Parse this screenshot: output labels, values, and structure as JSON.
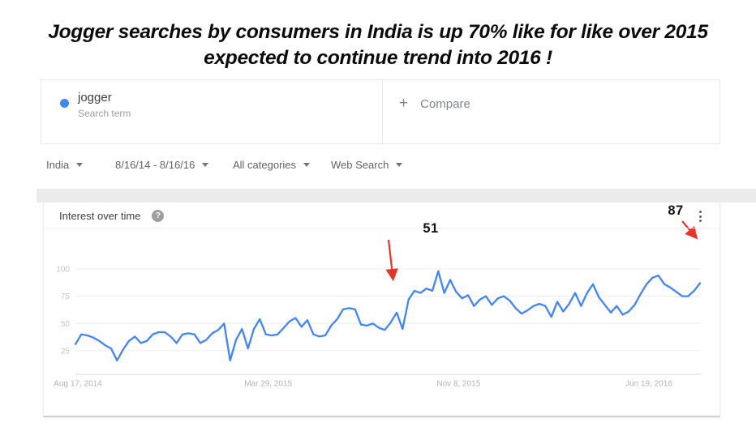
{
  "headline": {
    "line1": "Jogger searches by consumers in India is up 70% like for like over 2015",
    "line2": "expected to continue trend into 2016 !"
  },
  "search_terms": {
    "term": {
      "label": "jogger",
      "sublabel": "Search term",
      "dot_color": "#4285f4"
    },
    "compare": {
      "plus": "+",
      "label": "Compare"
    }
  },
  "filters": [
    {
      "label": "India"
    },
    {
      "label": "8/16/14 - 8/16/16"
    },
    {
      "label": "All categories"
    },
    {
      "label": "Web Search"
    }
  ],
  "chart_card": {
    "title": "Interest over time",
    "help_glyph": "?",
    "menu_icon": "vertical-dots"
  },
  "chart_data": {
    "type": "line",
    "title": "Interest over time",
    "series_name": "jogger",
    "line_color": "#4285f4",
    "grid": true,
    "ylim": [
      0,
      100
    ],
    "y_ticks": [
      25,
      50,
      75,
      100
    ],
    "x_labels": [
      "Aug 17, 2014",
      "Mar 29, 2015",
      "Nov 8, 2015",
      "Jun 19, 2016"
    ],
    "values": [
      31,
      40,
      39,
      37,
      34,
      30,
      27,
      16,
      26,
      34,
      38,
      32,
      34,
      40,
      42,
      42,
      38,
      32,
      40,
      41,
      40,
      32,
      35,
      41,
      44,
      50,
      16,
      35,
      45,
      27,
      45,
      54,
      40,
      39,
      40,
      46,
      52,
      55,
      47,
      53,
      40,
      38,
      39,
      48,
      54,
      63,
      64,
      63,
      49,
      48,
      50,
      46,
      44,
      51,
      60,
      45,
      72,
      80,
      78,
      82,
      80,
      98,
      78,
      90,
      79,
      73,
      76,
      66,
      72,
      75,
      67,
      73,
      75,
      71,
      64,
      59,
      62,
      66,
      68,
      66,
      56,
      70,
      61,
      68,
      78,
      66,
      78,
      86,
      74,
      67,
      60,
      66,
      58,
      61,
      67,
      77,
      86,
      92,
      94,
      86,
      83,
      79,
      75,
      75,
      80,
      87
    ],
    "annotations": [
      {
        "label": "51",
        "value": 51
      },
      {
        "label": "87",
        "value": 87
      }
    ],
    "annotation_arrow_color": "#e5352b",
    "axis_label_colors": {
      "y_ticks": "#c4c4c4",
      "x_labels": "#b3b3b3"
    }
  }
}
